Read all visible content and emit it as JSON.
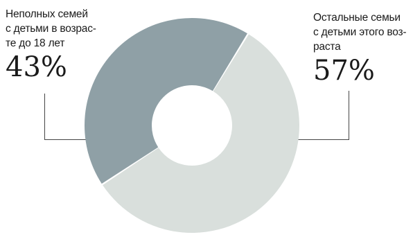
{
  "chart_data": {
    "type": "pie",
    "donut": true,
    "title": "",
    "slices": [
      {
        "lines": [
          "Неполных семей",
          "с детьми в возрас-",
          "те до 18 лет"
        ],
        "value": 43,
        "value_label": "43%",
        "color": "#8fa0a6"
      },
      {
        "lines": [
          "Остальные семьи",
          "с детьми этого воз-",
          "раста"
        ],
        "value": 57,
        "value_label": "57%",
        "color": "#d9dfdc"
      }
    ],
    "leader_color": "#444444",
    "legend": "none"
  }
}
